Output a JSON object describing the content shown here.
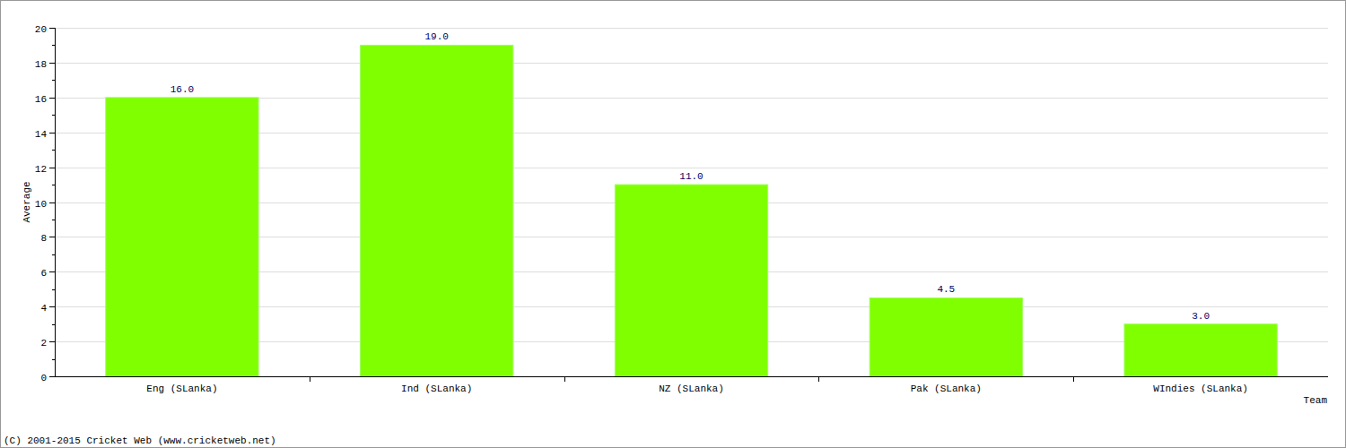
{
  "chart_data": {
    "type": "bar",
    "categories": [
      "Eng (SLanka)",
      "Ind (SLanka)",
      "NZ (SLanka)",
      "Pak (SLanka)",
      "WIndies (SLanka)"
    ],
    "values": [
      16.0,
      19.0,
      11.0,
      4.5,
      3.0
    ],
    "value_labels": [
      "16.0",
      "19.0",
      "11.0",
      "4.5",
      "3.0"
    ],
    "data_labels": true,
    "color": "#80ff00",
    "x_label": "Team",
    "y_label": "Average",
    "annotations": [
      "(C) 2001-2015 Cricket Web (www.cricketweb.net)"
    ],
    "ylim": [
      0,
      20
    ],
    "yticks": [
      0,
      2,
      4,
      6,
      8,
      10,
      12,
      14,
      16,
      18,
      20
    ],
    "grid": true
  }
}
